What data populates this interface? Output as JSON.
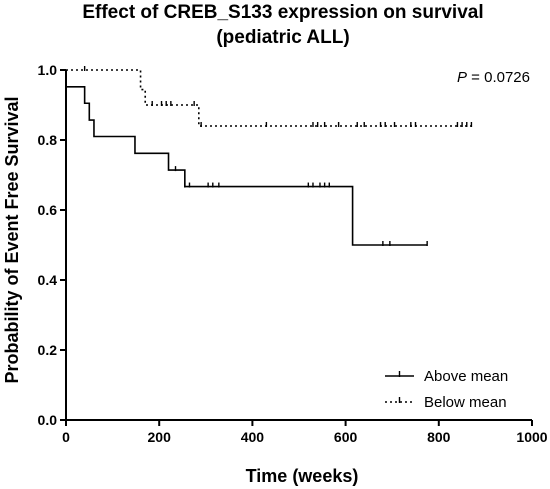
{
  "chart_data": {
    "type": "line",
    "title": "Effect of CREB_S133 expression on survival",
    "subtitle": "(pediatric ALL)",
    "xlabel": "Time (weeks)",
    "ylabel": "Probability of Event Free  Survival",
    "xlim": [
      0,
      1000
    ],
    "ylim": [
      0.0,
      1.0
    ],
    "x_ticks": [
      0,
      200,
      400,
      600,
      800,
      1000
    ],
    "y_ticks": [
      0.0,
      0.2,
      0.4,
      0.6,
      0.8,
      1.0
    ],
    "x_tick_labels": [
      "0",
      "200",
      "400",
      "600",
      "800",
      "1000"
    ],
    "y_tick_labels": [
      "0.0",
      "0.2",
      "0.4",
      "0.6",
      "0.8",
      "1.0"
    ],
    "annotation": "P = 0.0726",
    "annotation_prefix": "P",
    "annotation_value": " = 0.0726",
    "grid": false,
    "legend_position": "bottom-right",
    "series": [
      {
        "name": "Above mean",
        "style": "solid",
        "color": "#000000",
        "steps": [
          [
            0,
            0.952
          ],
          [
            40,
            0.905
          ],
          [
            50,
            0.857
          ],
          [
            60,
            0.81
          ],
          [
            148,
            0.762
          ],
          [
            220,
            0.714
          ],
          [
            255,
            0.667
          ],
          [
            615,
            0.5
          ],
          [
            775,
            0.5
          ]
        ],
        "censored": [
          [
            235,
            0.714
          ],
          [
            255,
            0.667
          ],
          [
            265,
            0.667
          ],
          [
            305,
            0.667
          ],
          [
            315,
            0.667
          ],
          [
            328,
            0.667
          ],
          [
            520,
            0.667
          ],
          [
            530,
            0.667
          ],
          [
            545,
            0.667
          ],
          [
            555,
            0.667
          ],
          [
            565,
            0.667
          ],
          [
            680,
            0.5
          ],
          [
            695,
            0.5
          ],
          [
            775,
            0.5
          ]
        ]
      },
      {
        "name": "Below mean",
        "style": "dotted",
        "color": "#000000",
        "steps": [
          [
            0,
            1.0
          ],
          [
            160,
            0.944
          ],
          [
            170,
            0.9
          ],
          [
            285,
            0.84
          ],
          [
            870,
            0.84
          ]
        ],
        "censored": [
          [
            40,
            1.0
          ],
          [
            185,
            0.9
          ],
          [
            205,
            0.9
          ],
          [
            215,
            0.9
          ],
          [
            225,
            0.9
          ],
          [
            275,
            0.9
          ],
          [
            290,
            0.84
          ],
          [
            430,
            0.84
          ],
          [
            530,
            0.84
          ],
          [
            540,
            0.84
          ],
          [
            555,
            0.84
          ],
          [
            585,
            0.84
          ],
          [
            625,
            0.84
          ],
          [
            640,
            0.84
          ],
          [
            675,
            0.84
          ],
          [
            685,
            0.84
          ],
          [
            705,
            0.84
          ],
          [
            740,
            0.84
          ],
          [
            750,
            0.84
          ],
          [
            840,
            0.84
          ],
          [
            850,
            0.84
          ],
          [
            860,
            0.84
          ],
          [
            870,
            0.84
          ]
        ]
      }
    ]
  }
}
